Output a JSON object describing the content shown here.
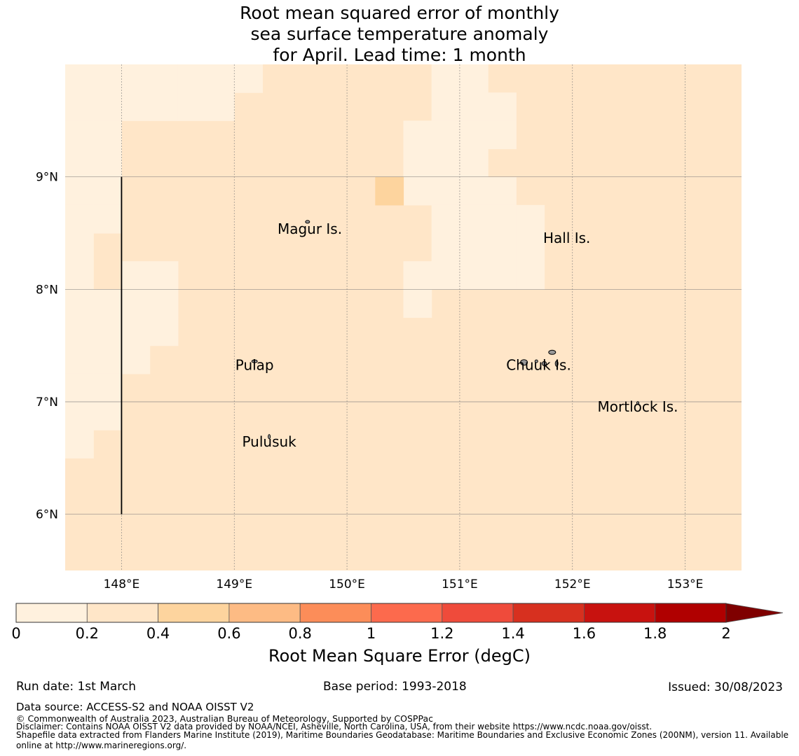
{
  "chart_data": {
    "type": "heatmap",
    "title_lines": [
      "Root mean squared error of monthly",
      "sea surface temperature anomaly",
      "for April. Lead time: 1 month"
    ],
    "lon_range": [
      147.5,
      153.5
    ],
    "lat_range": [
      5.5,
      10.0
    ],
    "cell_size_deg": 0.25,
    "base_bin": 1,
    "grid": true,
    "x_ticks": [
      {
        "value": 148,
        "label": "148°E"
      },
      {
        "value": 149,
        "label": "149°E"
      },
      {
        "value": 150,
        "label": "150°E"
      },
      {
        "value": 151,
        "label": "151°E"
      },
      {
        "value": 152,
        "label": "152°E"
      },
      {
        "value": 153,
        "label": "153°E"
      }
    ],
    "y_ticks": [
      {
        "value": 9,
        "label": "9°N"
      },
      {
        "value": 8,
        "label": "8°N"
      },
      {
        "value": 7,
        "label": "7°N"
      },
      {
        "value": 6,
        "label": "6°N"
      }
    ],
    "low_error_cells_0_to_0.2": [
      [
        147.5,
        147.75,
        9.75,
        10
      ],
      [
        147.75,
        148,
        9.75,
        10
      ],
      [
        148,
        148.25,
        9.75,
        10
      ],
      [
        148.25,
        148.5,
        9.75,
        10
      ],
      [
        148.5,
        148.75,
        9.75,
        10
      ],
      [
        148.75,
        149,
        9.75,
        10
      ],
      [
        149,
        149.25,
        9.75,
        10
      ],
      [
        147.5,
        147.75,
        9.5,
        9.75
      ],
      [
        147.75,
        148,
        9.5,
        9.75
      ],
      [
        148,
        148.25,
        9.5,
        9.75
      ],
      [
        148.25,
        148.5,
        9.5,
        9.75
      ],
      [
        148.5,
        148.75,
        9.5,
        9.75
      ],
      [
        148.75,
        149,
        9.5,
        9.75
      ],
      [
        147.5,
        147.75,
        9.25,
        9.5
      ],
      [
        147.75,
        148,
        9.25,
        9.5
      ],
      [
        147.5,
        147.75,
        9,
        9.25
      ],
      [
        147.75,
        148,
        9,
        9.25
      ],
      [
        147.5,
        147.75,
        8.75,
        9
      ],
      [
        147.75,
        148,
        8.75,
        9
      ],
      [
        147.5,
        147.75,
        8.5,
        8.75
      ],
      [
        147.75,
        148,
        8.5,
        8.75
      ],
      [
        147.5,
        147.75,
        8.25,
        8.5
      ],
      [
        147.5,
        147.75,
        8,
        8.25
      ],
      [
        148,
        148.25,
        8,
        8.25
      ],
      [
        148.25,
        148.5,
        8,
        8.25
      ],
      [
        147.5,
        147.75,
        7.75,
        8
      ],
      [
        147.75,
        148,
        7.75,
        8
      ],
      [
        148,
        148.25,
        7.75,
        8
      ],
      [
        148.25,
        148.5,
        7.75,
        8
      ],
      [
        147.5,
        147.75,
        7.5,
        7.75
      ],
      [
        147.75,
        148,
        7.5,
        7.75
      ],
      [
        148,
        148.25,
        7.5,
        7.75
      ],
      [
        148.25,
        148.5,
        7.5,
        7.75
      ],
      [
        147.5,
        147.75,
        7.25,
        7.5
      ],
      [
        147.75,
        148,
        7.25,
        7.5
      ],
      [
        148,
        148.25,
        7.25,
        7.5
      ],
      [
        147.5,
        147.75,
        7,
        7.25
      ],
      [
        147.75,
        148,
        7,
        7.25
      ],
      [
        147.5,
        147.75,
        6.75,
        7
      ],
      [
        147.75,
        148,
        6.75,
        7
      ],
      [
        147.5,
        147.75,
        6.5,
        6.75
      ],
      [
        150.75,
        151,
        9.75,
        10
      ],
      [
        151,
        151.25,
        9.75,
        10
      ],
      [
        150.75,
        151,
        9.5,
        9.75
      ],
      [
        151,
        151.25,
        9.5,
        9.75
      ],
      [
        151.25,
        151.5,
        9.5,
        9.75
      ],
      [
        150.5,
        150.75,
        9.25,
        9.5
      ],
      [
        150.75,
        151,
        9.25,
        9.5
      ],
      [
        151,
        151.25,
        9.25,
        9.5
      ],
      [
        151.25,
        151.5,
        9.25,
        9.5
      ],
      [
        150.5,
        150.75,
        9,
        9.25
      ],
      [
        150.75,
        151,
        9,
        9.25
      ],
      [
        151,
        151.25,
        9,
        9.25
      ],
      [
        150.5,
        150.75,
        8.75,
        9
      ],
      [
        150.75,
        151,
        8.75,
        9
      ],
      [
        151,
        151.25,
        8.75,
        9
      ],
      [
        151.25,
        151.5,
        8.75,
        9
      ],
      [
        150.75,
        151,
        8.5,
        8.75
      ],
      [
        151,
        151.25,
        8.5,
        8.75
      ],
      [
        151.25,
        151.5,
        8.5,
        8.75
      ],
      [
        151.5,
        151.75,
        8.5,
        8.75
      ],
      [
        150.75,
        151,
        8.25,
        8.5
      ],
      [
        151,
        151.25,
        8.25,
        8.5
      ],
      [
        151.25,
        151.5,
        8.25,
        8.5
      ],
      [
        151.5,
        151.75,
        8.25,
        8.5
      ],
      [
        150.5,
        150.75,
        8,
        8.25
      ],
      [
        150.75,
        151,
        8,
        8.25
      ],
      [
        151,
        151.25,
        8,
        8.25
      ],
      [
        151.25,
        151.5,
        8,
        8.25
      ],
      [
        151.5,
        151.75,
        8,
        8.25
      ],
      [
        150.5,
        150.75,
        7.75,
        8
      ]
    ],
    "mid_error_cells_0.4_to_0.6": [
      [
        150.25,
        150.5,
        8.75,
        9
      ]
    ],
    "islands": [
      {
        "name": "Magur Is.",
        "lon": 149.67,
        "lat": 8.58
      },
      {
        "name": "Hall Is.",
        "lon": 151.95,
        "lat": 8.5
      },
      {
        "name": "Pulap",
        "lon": 149.18,
        "lat": 7.37
      },
      {
        "name": "Chuuk Is.",
        "lon": 151.7,
        "lat": 7.37
      },
      {
        "name": "Mortlock Is.",
        "lon": 152.58,
        "lat": 7.0
      },
      {
        "name": "Pulusuk",
        "lon": 149.31,
        "lat": 6.69
      }
    ],
    "boundary_line": {
      "lon": 148.0,
      "lat_from": 6.0,
      "lat_to": 9.0
    },
    "colorbar": {
      "label": "Root Mean Square Error (degC)",
      "bounds": [
        0,
        0.2,
        0.4,
        0.6,
        0.8,
        1,
        1.2,
        1.4,
        1.6,
        1.8,
        2
      ],
      "tick_labels": [
        "0",
        "0.2",
        "0.4",
        "0.6",
        "0.8",
        "1",
        "1.2",
        "1.4",
        "1.6",
        "1.8",
        "2"
      ],
      "colors": [
        "#fff1de",
        "#ffe6c8",
        "#fdd49e",
        "#fdbb84",
        "#fc8d59",
        "#fc6a4d",
        "#ef4b3b",
        "#d7301f",
        "#c8120f",
        "#b00000"
      ],
      "extend_color": "#7f0000"
    }
  },
  "footer": {
    "run_date": "Run date: 1st March",
    "base_period": "Base period: 1993-2018",
    "issued": "Issued: 30/08/2023",
    "data_source": "Data source: ACCESS-S2 and NOAA OISST V2",
    "copyright": "© Commonwealth of Australia 2023, Australian Bureau of Meteorology, Supported by COSPPac",
    "disclaimer": "Disclaimer: Contains NOAA OISST V2 data provided by NOAA/NCEI, Asheville, North Carolina, USA, from their website https://www.ncdc.noaa.gov/oisst.",
    "shapefile_line1": "Shapefile data extracted from Flanders Marine Institute (2019), Maritime Boundaries Geodatabase: Maritime Boundaries and Exclusive Economic Zones (200NM), version 11. Available",
    "shapefile_line2": "online at http://www.marineregions.org/."
  }
}
